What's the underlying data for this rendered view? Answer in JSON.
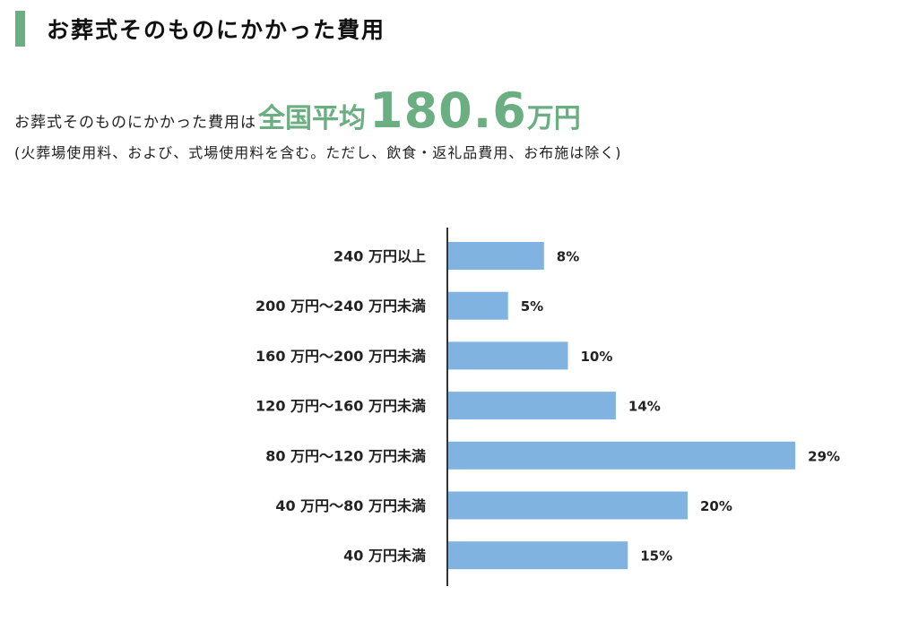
{
  "section": {
    "title": "お葬式そのものにかかった費用"
  },
  "summary": {
    "prefix": "お葬式そのものにかかった費用は",
    "label": "全国平均",
    "value": "180.6",
    "unit": "万円",
    "note": "(火葬場使用料、および、式場使用料を含む。ただし、飲食・返礼品費用、お布施は除く)"
  },
  "colors": {
    "accent": "#6aae82",
    "bar": "#80b3df",
    "axis": "#333333"
  },
  "chart_data": {
    "type": "bar",
    "orientation": "horizontal",
    "title": "",
    "xlabel": "",
    "ylabel": "",
    "unit": "%",
    "xlim": [
      0,
      30
    ],
    "categories": [
      "240 万円以上",
      "200 万円〜240 万円未満",
      "160 万円〜200 万円未満",
      "120 万円〜160 万円未満",
      "80 万円〜120 万円未満",
      "40 万円〜80 万円未満",
      "40 万円未満"
    ],
    "values": [
      8,
      5,
      10,
      14,
      29,
      20,
      15
    ],
    "value_labels": [
      "8%",
      "5%",
      "10%",
      "14%",
      "29%",
      "20%",
      "15%"
    ]
  }
}
